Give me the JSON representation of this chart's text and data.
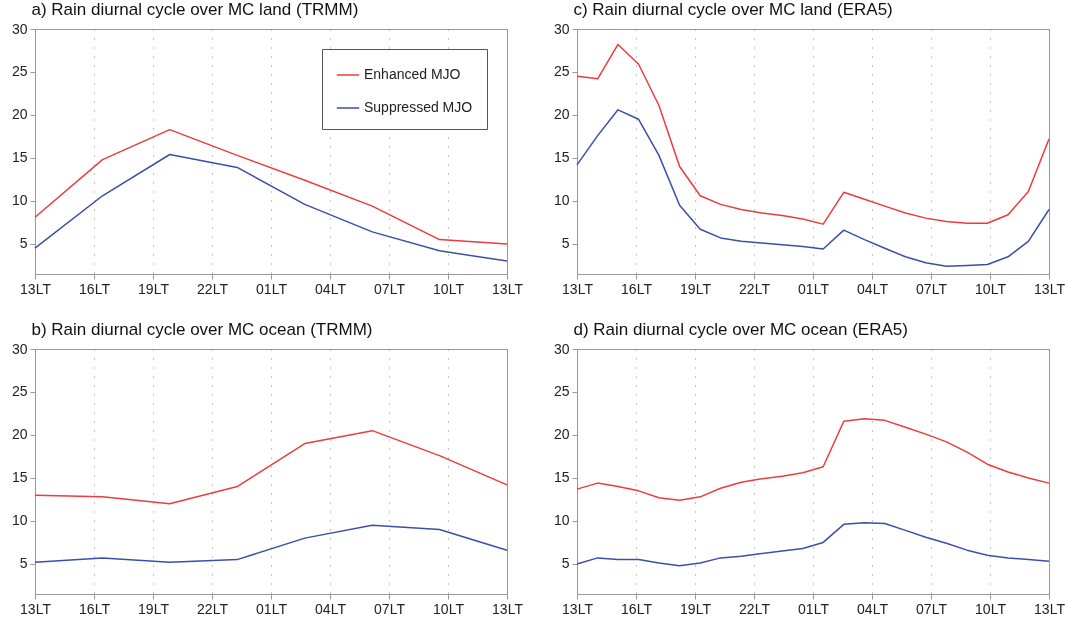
{
  "chart_data": [
    {
      "type": "line",
      "title": "a) Rain diurnal cycle over MC land (TRMM)",
      "x": [
        "--01-01T13:00",
        "--01-01T16:26",
        "--01-01T19:51",
        "--01-01T23:17",
        "--01-02T02:43",
        "--01-02T06:09",
        "--01-02T09:34",
        "--01-02T13:00"
      ],
      "xlim": [
        "--01-01T13:00",
        "--01-02T13:00"
      ],
      "xticks": [
        {
          "value": "--01-01T13:00",
          "label": "13LT"
        },
        {
          "value": "--01-01T16:00",
          "label": "16LT"
        },
        {
          "value": "--01-01T19:00",
          "label": "19LT"
        },
        {
          "value": "--01-01T22:00",
          "label": "22LT"
        },
        {
          "value": "--01-02T01:00",
          "label": "01LT"
        },
        {
          "value": "--01-02T04:00",
          "label": "04LT"
        },
        {
          "value": "--01-02T07:00",
          "label": "07LT"
        },
        {
          "value": "--01-02T10:00",
          "label": "10LT"
        },
        {
          "value": "--01-02T13:00",
          "label": "13LT"
        }
      ],
      "ylim": [
        1.5,
        30
      ],
      "yticks": [
        5,
        10,
        15,
        20,
        25,
        30
      ],
      "grid": "x",
      "legend": "top right",
      "series": [
        {
          "name": "Enhanced MJO",
          "color": "#ee3b3b",
          "values": [
            8.1,
            14.8,
            18.3,
            15.3,
            12.4,
            9.4,
            5.5,
            5.0
          ]
        },
        {
          "name": "Suppressed MJO",
          "color": "#3b4fa8",
          "values": [
            4.5,
            10.6,
            15.4,
            13.9,
            9.6,
            6.4,
            4.2,
            3.0
          ]
        }
      ]
    },
    {
      "type": "line",
      "title": "c) Rain diurnal cycle over MC land (ERA5)",
      "x": [
        "--01-01T13:00",
        "--01-01T14:03",
        "--01-01T15:05",
        "--01-01T16:08",
        "--01-01T17:10",
        "--01-01T18:13",
        "--01-01T19:16",
        "--01-01T20:18",
        "--01-01T21:21",
        "--01-01T22:23",
        "--01-01T23:26",
        "--01-02T00:29",
        "--01-02T01:31",
        "--01-02T02:34",
        "--01-02T03:37",
        "--01-02T04:39",
        "--01-02T05:42",
        "--01-02T06:44",
        "--01-02T07:47",
        "--01-02T08:50",
        "--01-02T09:52",
        "--01-02T10:55",
        "--01-02T11:57",
        "--01-02T13:00"
      ],
      "xlim": [
        "--01-01T13:00",
        "--01-02T13:00"
      ],
      "xticks": [
        {
          "value": "--01-01T13:00",
          "label": "13LT"
        },
        {
          "value": "--01-01T16:00",
          "label": "16LT"
        },
        {
          "value": "--01-01T19:00",
          "label": "19LT"
        },
        {
          "value": "--01-01T22:00",
          "label": "22LT"
        },
        {
          "value": "--01-02T01:00",
          "label": "01LT"
        },
        {
          "value": "--01-02T04:00",
          "label": "04LT"
        },
        {
          "value": "--01-02T07:00",
          "label": "07LT"
        },
        {
          "value": "--01-02T10:00",
          "label": "10LT"
        },
        {
          "value": "--01-02T13:00",
          "label": "13LT"
        }
      ],
      "ylim": [
        1.5,
        30
      ],
      "yticks": [
        5,
        10,
        15,
        20,
        25,
        30
      ],
      "grid": "x",
      "series": [
        {
          "color": "#ee3b3b",
          "values": [
            24.5,
            24.2,
            28.2,
            25.9,
            21.1,
            14.0,
            10.6,
            9.6,
            9.0,
            8.6,
            8.3,
            7.9,
            7.3,
            11.0,
            10.2,
            9.4,
            8.6,
            8.0,
            7.6,
            7.4,
            7.4,
            8.4,
            11.1,
            17.2
          ]
        },
        {
          "color": "#3b4fa8",
          "values": [
            14.2,
            17.6,
            20.6,
            19.5,
            15.3,
            9.5,
            6.7,
            5.7,
            5.3,
            5.1,
            4.9,
            4.7,
            4.4,
            6.6,
            5.5,
            4.5,
            3.5,
            2.8,
            2.4,
            2.5,
            2.6,
            3.5,
            5.3,
            9.0
          ]
        }
      ]
    },
    {
      "type": "line",
      "title": "b) Rain diurnal cycle over MC ocean (TRMM)",
      "x": [
        "--01-01T13:00",
        "--01-01T16:26",
        "--01-01T19:51",
        "--01-01T23:17",
        "--01-02T02:43",
        "--01-02T06:09",
        "--01-02T09:34",
        "--01-02T13:00"
      ],
      "xlim": [
        "--01-01T13:00",
        "--01-02T13:00"
      ],
      "xticks": [
        {
          "value": "--01-01T13:00",
          "label": "13LT"
        },
        {
          "value": "--01-01T16:00",
          "label": "16LT"
        },
        {
          "value": "--01-01T19:00",
          "label": "19LT"
        },
        {
          "value": "--01-01T22:00",
          "label": "22LT"
        },
        {
          "value": "--01-02T01:00",
          "label": "01LT"
        },
        {
          "value": "--01-02T04:00",
          "label": "04LT"
        },
        {
          "value": "--01-02T07:00",
          "label": "07LT"
        },
        {
          "value": "--01-02T10:00",
          "label": "10LT"
        },
        {
          "value": "--01-02T13:00",
          "label": "13LT"
        }
      ],
      "ylim": [
        1.5,
        30
      ],
      "yticks": [
        5,
        10,
        15,
        20,
        25,
        30
      ],
      "grid": "x",
      "series": [
        {
          "color": "#ee3b3b",
          "values": [
            13.0,
            12.8,
            12.0,
            14.0,
            19.0,
            20.5,
            17.6,
            14.2
          ]
        },
        {
          "color": "#3b4fa8",
          "values": [
            5.2,
            5.7,
            5.2,
            5.5,
            8.0,
            9.5,
            9.0,
            6.6
          ]
        }
      ]
    },
    {
      "type": "line",
      "title": "d) Rain diurnal cycle over MC ocean (ERA5)",
      "x": [
        "--01-01T13:00",
        "--01-01T14:03",
        "--01-01T15:05",
        "--01-01T16:08",
        "--01-01T17:10",
        "--01-01T18:13",
        "--01-01T19:16",
        "--01-01T20:18",
        "--01-01T21:21",
        "--01-01T22:23",
        "--01-01T23:26",
        "--01-02T00:29",
        "--01-02T01:31",
        "--01-02T02:34",
        "--01-02T03:37",
        "--01-02T04:39",
        "--01-02T05:42",
        "--01-02T06:44",
        "--01-02T07:47",
        "--01-02T08:50",
        "--01-02T09:52",
        "--01-02T10:55",
        "--01-02T11:57",
        "--01-02T13:00"
      ],
      "xlim": [
        "--01-01T13:00",
        "--01-02T13:00"
      ],
      "xticks": [
        {
          "value": "--01-01T13:00",
          "label": "13LT"
        },
        {
          "value": "--01-01T16:00",
          "label": "16LT"
        },
        {
          "value": "--01-01T19:00",
          "label": "19LT"
        },
        {
          "value": "--01-01T22:00",
          "label": "22LT"
        },
        {
          "value": "--01-02T01:00",
          "label": "01LT"
        },
        {
          "value": "--01-02T04:00",
          "label": "04LT"
        },
        {
          "value": "--01-02T07:00",
          "label": "07LT"
        },
        {
          "value": "--01-02T10:00",
          "label": "10LT"
        },
        {
          "value": "--01-02T13:00",
          "label": "13LT"
        }
      ],
      "ylim": [
        1.5,
        30
      ],
      "yticks": [
        5,
        10,
        15,
        20,
        25,
        30
      ],
      "grid": "x",
      "series": [
        {
          "color": "#ee3b3b",
          "values": [
            13.7,
            14.4,
            14.0,
            13.5,
            12.7,
            12.4,
            12.8,
            13.8,
            14.5,
            14.9,
            15.2,
            15.6,
            16.3,
            21.6,
            21.9,
            21.7,
            20.9,
            20.1,
            19.2,
            18.0,
            16.6,
            15.7,
            15.0,
            14.4
          ]
        },
        {
          "color": "#3b4fa8",
          "values": [
            5.0,
            5.7,
            5.5,
            5.5,
            5.1,
            4.8,
            5.1,
            5.7,
            5.9,
            6.2,
            6.5,
            6.8,
            7.5,
            9.6,
            9.8,
            9.7,
            8.9,
            8.1,
            7.4,
            6.6,
            6.0,
            5.7,
            5.5,
            5.3
          ]
        }
      ]
    }
  ]
}
